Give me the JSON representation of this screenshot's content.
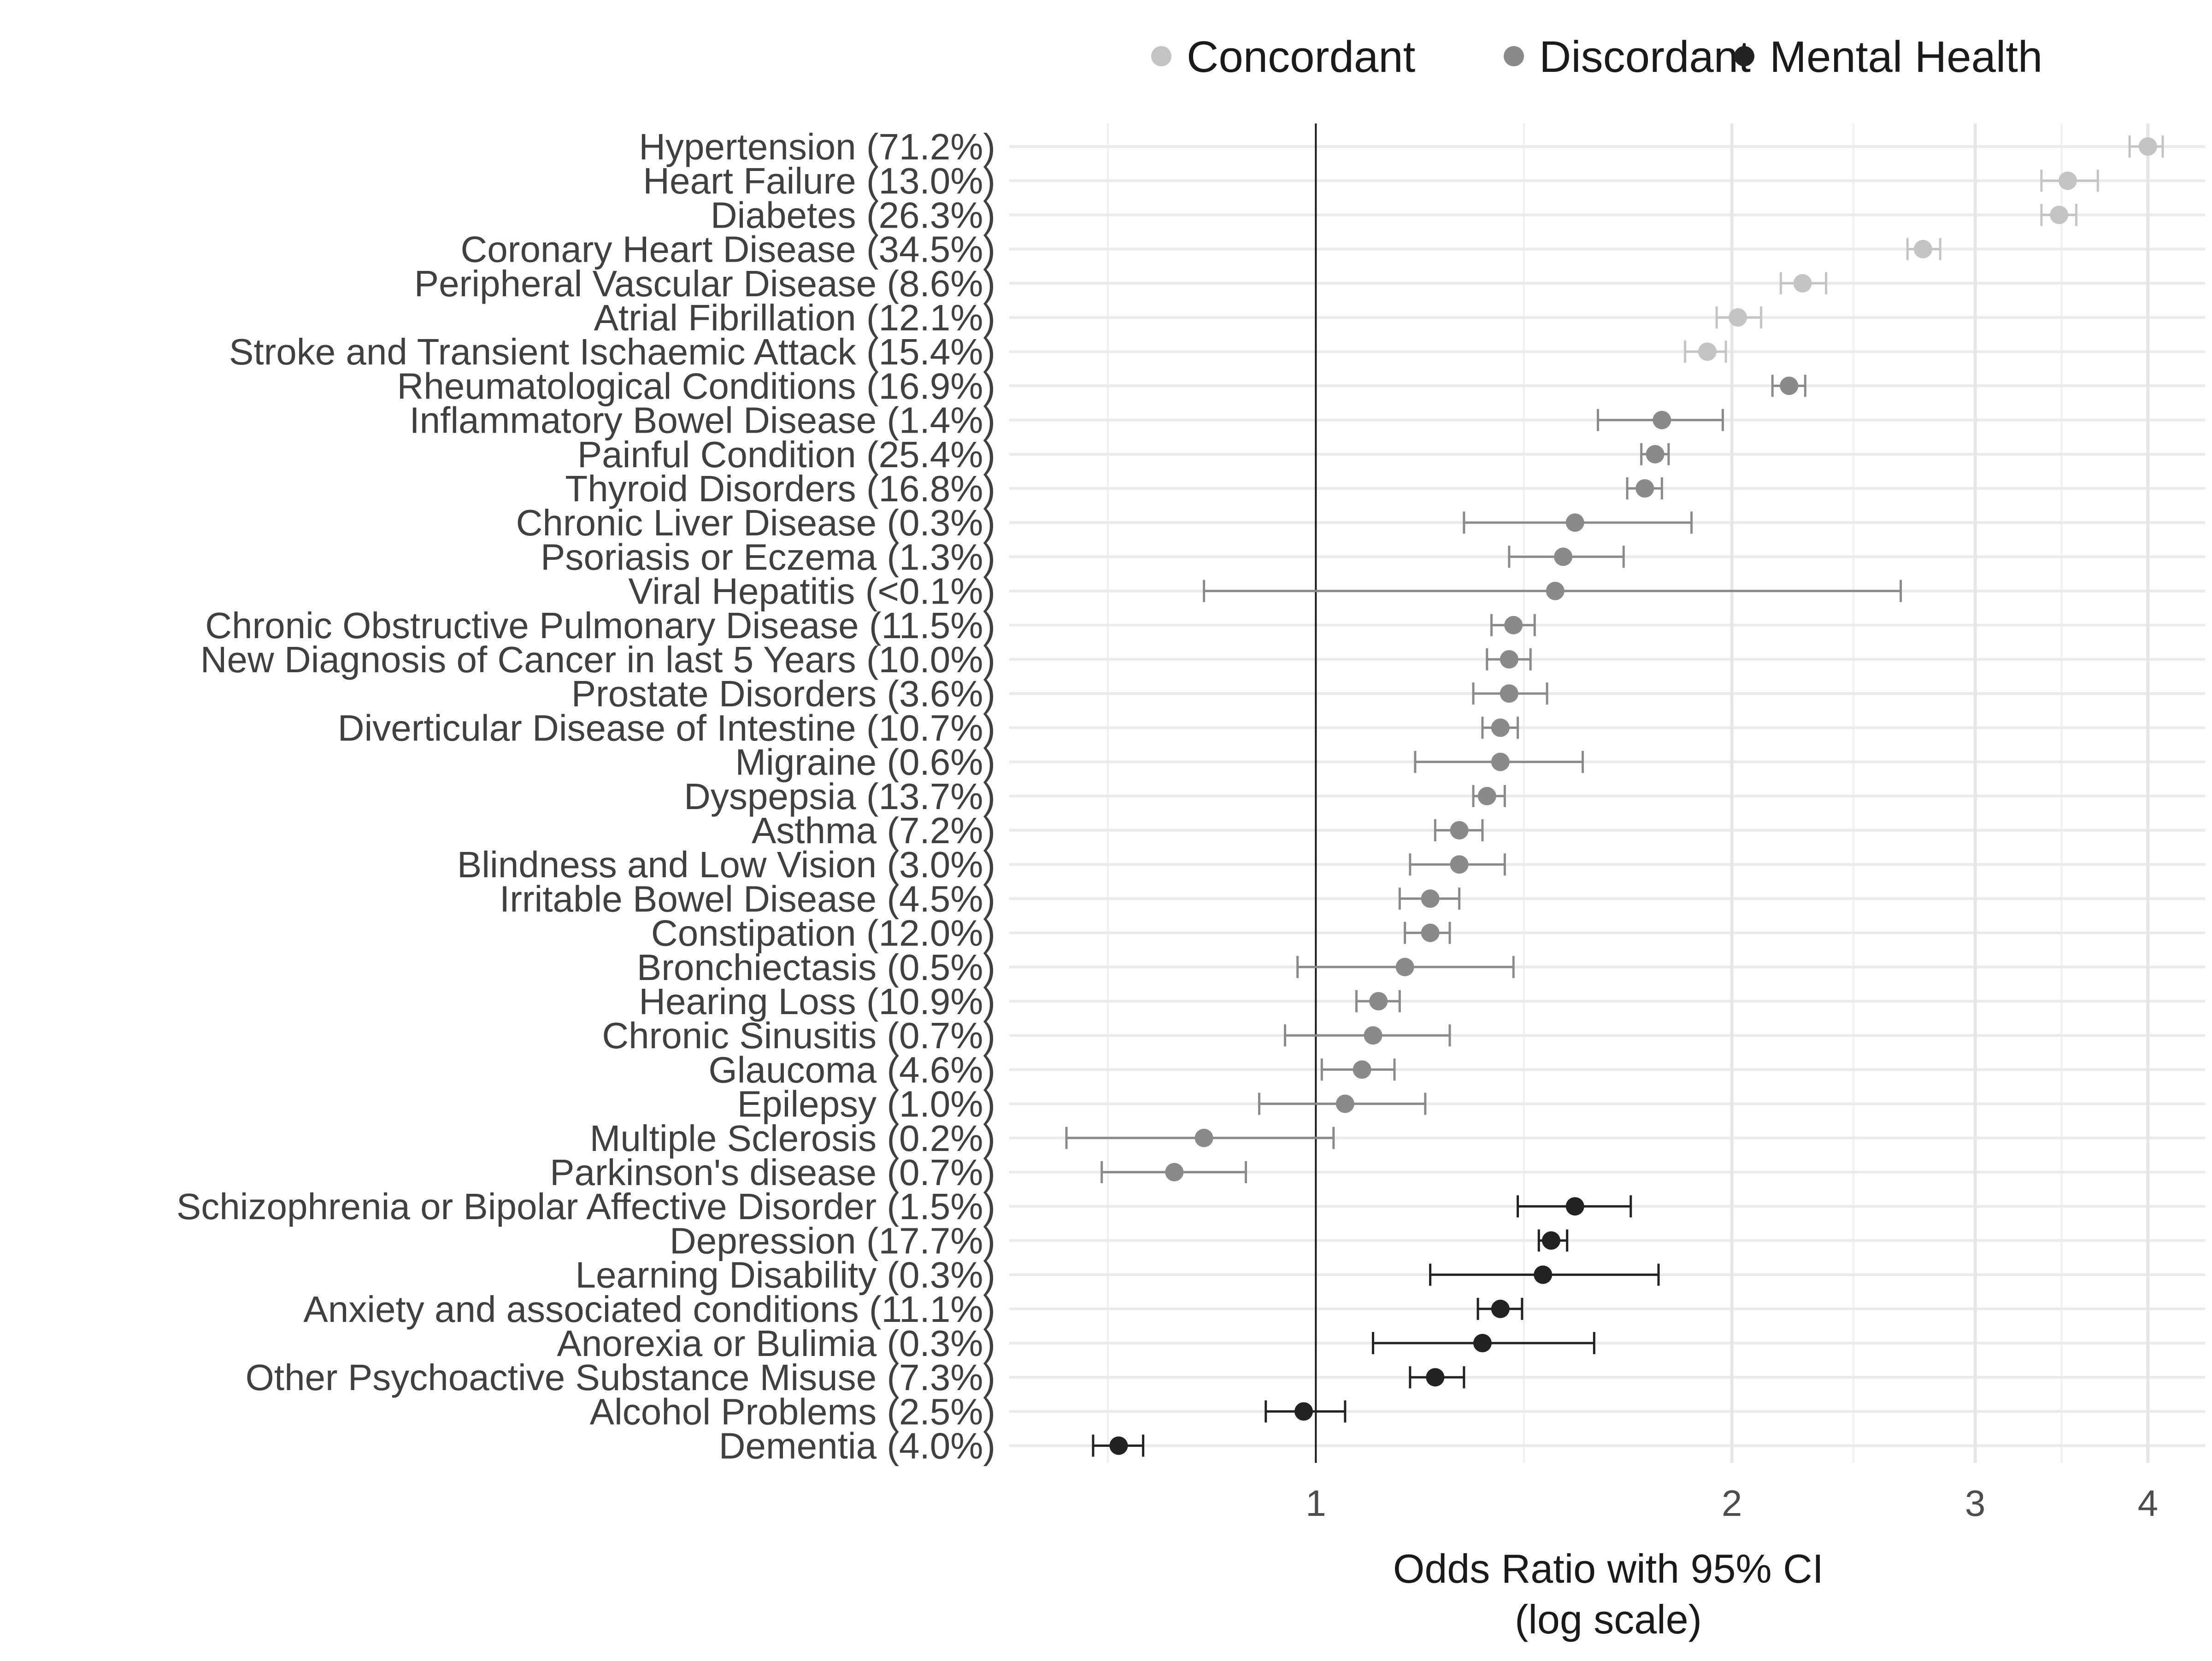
{
  "chart_data": {
    "type": "forest",
    "x_scale": "log",
    "xlim": [
      0.6,
      4.4
    ],
    "xticks": [
      1,
      2,
      3,
      4
    ],
    "xtick_labels": [
      "1",
      "2",
      "3",
      "4"
    ],
    "reference_line": 1,
    "grid": true,
    "legend_position": "top",
    "xlabel_lines": [
      "Odds Ratio with 95% CI",
      "(log scale)"
    ],
    "ylabel": "",
    "title": "",
    "groups": [
      {
        "name": "Concordant",
        "color": "#c4c4c4"
      },
      {
        "name": "Discordant",
        "color": "#8a8a8a"
      },
      {
        "name": "Mental Health",
        "color": "#222222"
      }
    ],
    "rows": [
      {
        "label": "Hypertension (71.2%)",
        "group": "Concordant",
        "or": 4.0,
        "lo": 3.88,
        "hi": 4.1
      },
      {
        "label": "Heart Failure (13.0%)",
        "group": "Concordant",
        "or": 3.5,
        "lo": 3.35,
        "hi": 3.68
      },
      {
        "label": "Diabetes (26.3%)",
        "group": "Concordant",
        "or": 3.45,
        "lo": 3.35,
        "hi": 3.55
      },
      {
        "label": "Coronary Heart Disease (34.5%)",
        "group": "Concordant",
        "or": 2.75,
        "lo": 2.68,
        "hi": 2.83
      },
      {
        "label": "Peripheral Vascular Disease (8.6%)",
        "group": "Concordant",
        "or": 2.25,
        "lo": 2.17,
        "hi": 2.34
      },
      {
        "label": "Atrial Fibrillation (12.1%)",
        "group": "Concordant",
        "or": 2.02,
        "lo": 1.95,
        "hi": 2.1
      },
      {
        "label": "Stroke and Transient Ischaemic Attack (15.4%)",
        "group": "Concordant",
        "or": 1.92,
        "lo": 1.85,
        "hi": 1.98
      },
      {
        "label": "Rheumatological Conditions (16.9%)",
        "group": "Discordant",
        "or": 2.2,
        "lo": 2.14,
        "hi": 2.26
      },
      {
        "label": "Inflammatory Bowel Disease (1.4%)",
        "group": "Discordant",
        "or": 1.78,
        "lo": 1.6,
        "hi": 1.97
      },
      {
        "label": "Painful Condition (25.4%)",
        "group": "Discordant",
        "or": 1.76,
        "lo": 1.72,
        "hi": 1.8
      },
      {
        "label": "Thyroid Disorders (16.8%)",
        "group": "Discordant",
        "or": 1.73,
        "lo": 1.68,
        "hi": 1.78
      },
      {
        "label": "Chronic Liver Disease (0.3%)",
        "group": "Discordant",
        "or": 1.54,
        "lo": 1.28,
        "hi": 1.87
      },
      {
        "label": "Psoriasis or Eczema (1.3%)",
        "group": "Discordant",
        "or": 1.51,
        "lo": 1.38,
        "hi": 1.67
      },
      {
        "label": "Viral Hepatitis (<0.1%)",
        "group": "Discordant",
        "or": 1.49,
        "lo": 0.83,
        "hi": 2.65
      },
      {
        "label": "Chronic Obstructive Pulmonary Disease (11.5%)",
        "group": "Discordant",
        "or": 1.39,
        "lo": 1.34,
        "hi": 1.44
      },
      {
        "label": "New Diagnosis of Cancer in last 5 Years (10.0%)",
        "group": "Discordant",
        "or": 1.38,
        "lo": 1.33,
        "hi": 1.43
      },
      {
        "label": "Prostate Disorders (3.6%)",
        "group": "Discordant",
        "or": 1.38,
        "lo": 1.3,
        "hi": 1.47
      },
      {
        "label": "Diverticular Disease of Intestine (10.7%)",
        "group": "Discordant",
        "or": 1.36,
        "lo": 1.32,
        "hi": 1.4
      },
      {
        "label": "Migraine (0.6%)",
        "group": "Discordant",
        "or": 1.36,
        "lo": 1.18,
        "hi": 1.56
      },
      {
        "label": "Dyspepsia (13.7%)",
        "group": "Discordant",
        "or": 1.33,
        "lo": 1.3,
        "hi": 1.37
      },
      {
        "label": "Asthma (7.2%)",
        "group": "Discordant",
        "or": 1.27,
        "lo": 1.22,
        "hi": 1.32
      },
      {
        "label": "Blindness and Low Vision (3.0%)",
        "group": "Discordant",
        "or": 1.27,
        "lo": 1.17,
        "hi": 1.37
      },
      {
        "label": "Irritable Bowel Disease (4.5%)",
        "group": "Discordant",
        "or": 1.21,
        "lo": 1.15,
        "hi": 1.27
      },
      {
        "label": "Constipation (12.0%)",
        "group": "Discordant",
        "or": 1.21,
        "lo": 1.16,
        "hi": 1.25
      },
      {
        "label": "Bronchiectasis (0.5%)",
        "group": "Discordant",
        "or": 1.16,
        "lo": 0.97,
        "hi": 1.39
      },
      {
        "label": "Hearing Loss (10.9%)",
        "group": "Discordant",
        "or": 1.11,
        "lo": 1.07,
        "hi": 1.15
      },
      {
        "label": "Chronic Sinusitis (0.7%)",
        "group": "Discordant",
        "or": 1.1,
        "lo": 0.95,
        "hi": 1.25
      },
      {
        "label": "Glaucoma (4.6%)",
        "group": "Discordant",
        "or": 1.08,
        "lo": 1.01,
        "hi": 1.14
      },
      {
        "label": "Epilepsy (1.0%)",
        "group": "Discordant",
        "or": 1.05,
        "lo": 0.91,
        "hi": 1.2
      },
      {
        "label": "Multiple Sclerosis (0.2%)",
        "group": "Discordant",
        "or": 0.83,
        "lo": 0.66,
        "hi": 1.03
      },
      {
        "label": "Parkinson's disease (0.7%)",
        "group": "Discordant",
        "or": 0.79,
        "lo": 0.7,
        "hi": 0.89
      },
      {
        "label": "Schizophrenia or Bipolar Affective Disorder (1.5%)",
        "group": "Mental Health",
        "or": 1.54,
        "lo": 1.4,
        "hi": 1.69
      },
      {
        "label": "Depression (17.7%)",
        "group": "Mental Health",
        "or": 1.48,
        "lo": 1.45,
        "hi": 1.52
      },
      {
        "label": "Learning Disability (0.3%)",
        "group": "Mental Health",
        "or": 1.46,
        "lo": 1.21,
        "hi": 1.77
      },
      {
        "label": "Anxiety and associated conditions (11.1%)",
        "group": "Mental Health",
        "or": 1.36,
        "lo": 1.31,
        "hi": 1.41
      },
      {
        "label": "Anorexia or Bulimia (0.3%)",
        "group": "Mental Health",
        "or": 1.32,
        "lo": 1.1,
        "hi": 1.59
      },
      {
        "label": "Other Psychoactive Substance Misuse (7.3%)",
        "group": "Mental Health",
        "or": 1.22,
        "lo": 1.17,
        "hi": 1.28
      },
      {
        "label": "Alcohol Problems (2.5%)",
        "group": "Mental Health",
        "or": 0.98,
        "lo": 0.92,
        "hi": 1.05
      },
      {
        "label": "Dementia (4.0%)",
        "group": "Mental Health",
        "or": 0.72,
        "lo": 0.69,
        "hi": 0.75
      }
    ]
  }
}
